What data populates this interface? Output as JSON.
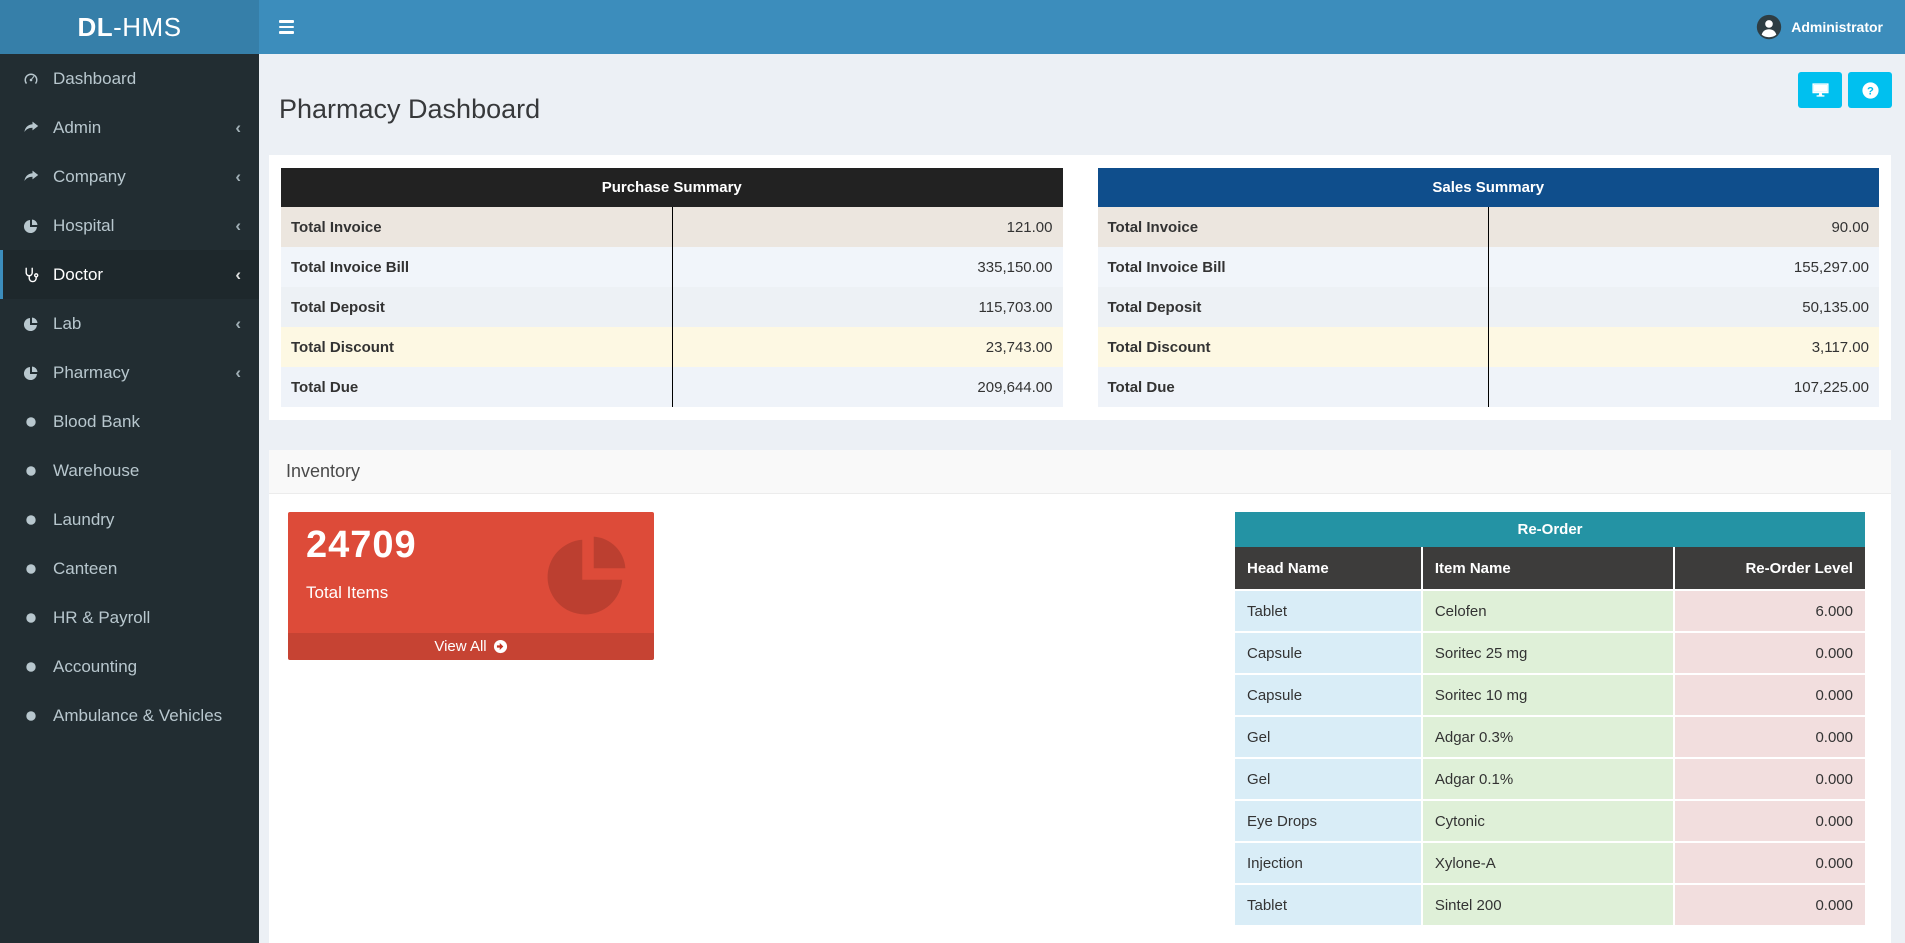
{
  "app": {
    "brand_bold": "DL",
    "brand_rest": "-HMS",
    "user_name": "Administrator",
    "user_avatar_icon": "user-icon",
    "hamburger_icon": "menu-icon"
  },
  "page": {
    "title": "Pharmacy Dashboard"
  },
  "toolbar": {
    "accent_color": "#00c0ef",
    "buttons": [
      {
        "name": "display-button",
        "icon": "desktop-icon"
      },
      {
        "name": "help-button",
        "icon": "question-icon"
      }
    ]
  },
  "sidebar": {
    "items": [
      {
        "label": "Dashboard",
        "icon": "gauge-icon",
        "active": false,
        "has_children": false
      },
      {
        "label": "Admin",
        "icon": "share-icon",
        "active": false,
        "has_children": true
      },
      {
        "label": "Company",
        "icon": "share-icon",
        "active": false,
        "has_children": true
      },
      {
        "label": "Hospital",
        "icon": "pie-icon",
        "active": false,
        "has_children": true
      },
      {
        "label": "Doctor",
        "icon": "stethoscope-icon",
        "active": true,
        "has_children": true
      },
      {
        "label": "Lab",
        "icon": "pie-icon",
        "active": false,
        "has_children": true
      },
      {
        "label": "Pharmacy",
        "icon": "pie-icon",
        "active": false,
        "has_children": true
      },
      {
        "label": "Blood Bank",
        "icon": "circle-icon",
        "active": false,
        "has_children": false
      },
      {
        "label": "Warehouse",
        "icon": "circle-icon",
        "active": false,
        "has_children": false
      },
      {
        "label": "Laundry",
        "icon": "circle-icon",
        "active": false,
        "has_children": false
      },
      {
        "label": "Canteen",
        "icon": "circle-icon",
        "active": false,
        "has_children": false
      },
      {
        "label": "HR & Payroll",
        "icon": "circle-icon",
        "active": false,
        "has_children": false
      },
      {
        "label": "Accounting",
        "icon": "circle-icon",
        "active": false,
        "has_children": false
      },
      {
        "label": "Ambulance & Vehicles",
        "icon": "circle-icon",
        "active": false,
        "has_children": false
      }
    ]
  },
  "summary_row_colors": [
    "#ece6df",
    "#f1f5fa",
    "#edf1f5",
    "#fdf8e3",
    "#eff3f9"
  ],
  "summary_tables": [
    {
      "title": "Purchase Summary",
      "header_bg": "#222222",
      "rows": [
        {
          "label": "Total Invoice",
          "value": "121.00"
        },
        {
          "label": "Total Invoice Bill",
          "value": "335,150.00"
        },
        {
          "label": "Total Deposit",
          "value": "115,703.00"
        },
        {
          "label": "Total Discount",
          "value": "23,743.00"
        },
        {
          "label": "Total Due",
          "value": "209,644.00"
        }
      ]
    },
    {
      "title": "Sales Summary",
      "header_bg": "#0f4e8c",
      "rows": [
        {
          "label": "Total Invoice",
          "value": "90.00"
        },
        {
          "label": "Total Invoice Bill",
          "value": "155,297.00"
        },
        {
          "label": "Total Deposit",
          "value": "50,135.00"
        },
        {
          "label": "Total Discount",
          "value": "3,117.00"
        },
        {
          "label": "Total Due",
          "value": "107,225.00"
        }
      ]
    }
  ],
  "inventory": {
    "panel_title": "Inventory",
    "total_items_card": {
      "value": "24709",
      "label": "Total Items",
      "action_label": "View All",
      "action_icon": "arrow-circle-icon",
      "icon": "pie-chart-icon",
      "bg_color": "#dd4b39"
    },
    "reorder_table": {
      "title": "Re-Order",
      "header_bg": "#2493a4",
      "column_header_bg": "#3d3c3b",
      "columns": [
        "Head Name",
        "Item Name",
        "Re-Order Level"
      ],
      "column_colors": [
        "#d9edf7",
        "#dff0d8",
        "#f2dede"
      ],
      "rows": [
        [
          "Tablet",
          "Celofen",
          "6.000"
        ],
        [
          "Capsule",
          "Soritec 25 mg",
          "0.000"
        ],
        [
          "Capsule",
          "Soritec 10 mg",
          "0.000"
        ],
        [
          "Gel",
          "Adgar 0.3%",
          "0.000"
        ],
        [
          "Gel",
          "Adgar 0.1%",
          "0.000"
        ],
        [
          "Eye Drops",
          "Cytonic",
          "0.000"
        ],
        [
          "Injection",
          "Xylone-A",
          "0.000"
        ],
        [
          "Tablet",
          "Sintel 200",
          "0.000"
        ]
      ]
    }
  },
  "colors": {
    "navbar": "#3c8dbc",
    "logo_bg": "#367fa9",
    "sidebar_bg": "#222d32",
    "sidebar_text": "#b8c7ce",
    "active_item_bg": "#1e282c",
    "content_bg": "#ecf0f5",
    "accent": "#00c0ef",
    "card_red": "#dd4b39"
  }
}
